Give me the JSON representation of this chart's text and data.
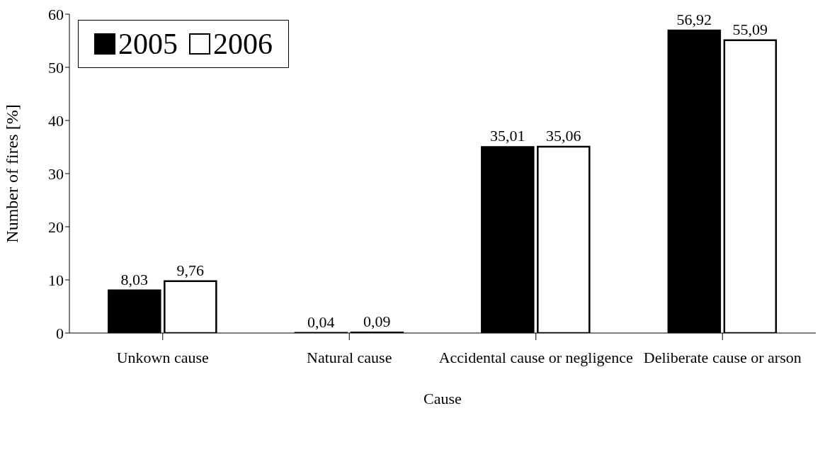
{
  "chart_data": {
    "type": "bar",
    "xlabel": "Cause",
    "ylabel": "Number of fires [%]",
    "categories": [
      "Unkown cause",
      "Natural cause",
      "Accidental cause or negligence",
      "Deliberate cause or arson"
    ],
    "series": [
      {
        "name": "2005",
        "color": "#000000",
        "values": [
          8.03,
          0.04,
          35.01,
          56.92
        ],
        "value_labels": [
          "8,03",
          "0,04",
          "35,01",
          "56,92"
        ]
      },
      {
        "name": "2006",
        "color": "#ffffff",
        "values": [
          9.76,
          0.09,
          35.06,
          55.09
        ],
        "value_labels": [
          "9,76",
          "0,09",
          "35,06",
          "55,09"
        ]
      }
    ],
    "ylim": [
      0,
      60
    ],
    "yticks": [
      0,
      10,
      20,
      30,
      40,
      50,
      60
    ],
    "grid": false,
    "legend": "top left"
  }
}
